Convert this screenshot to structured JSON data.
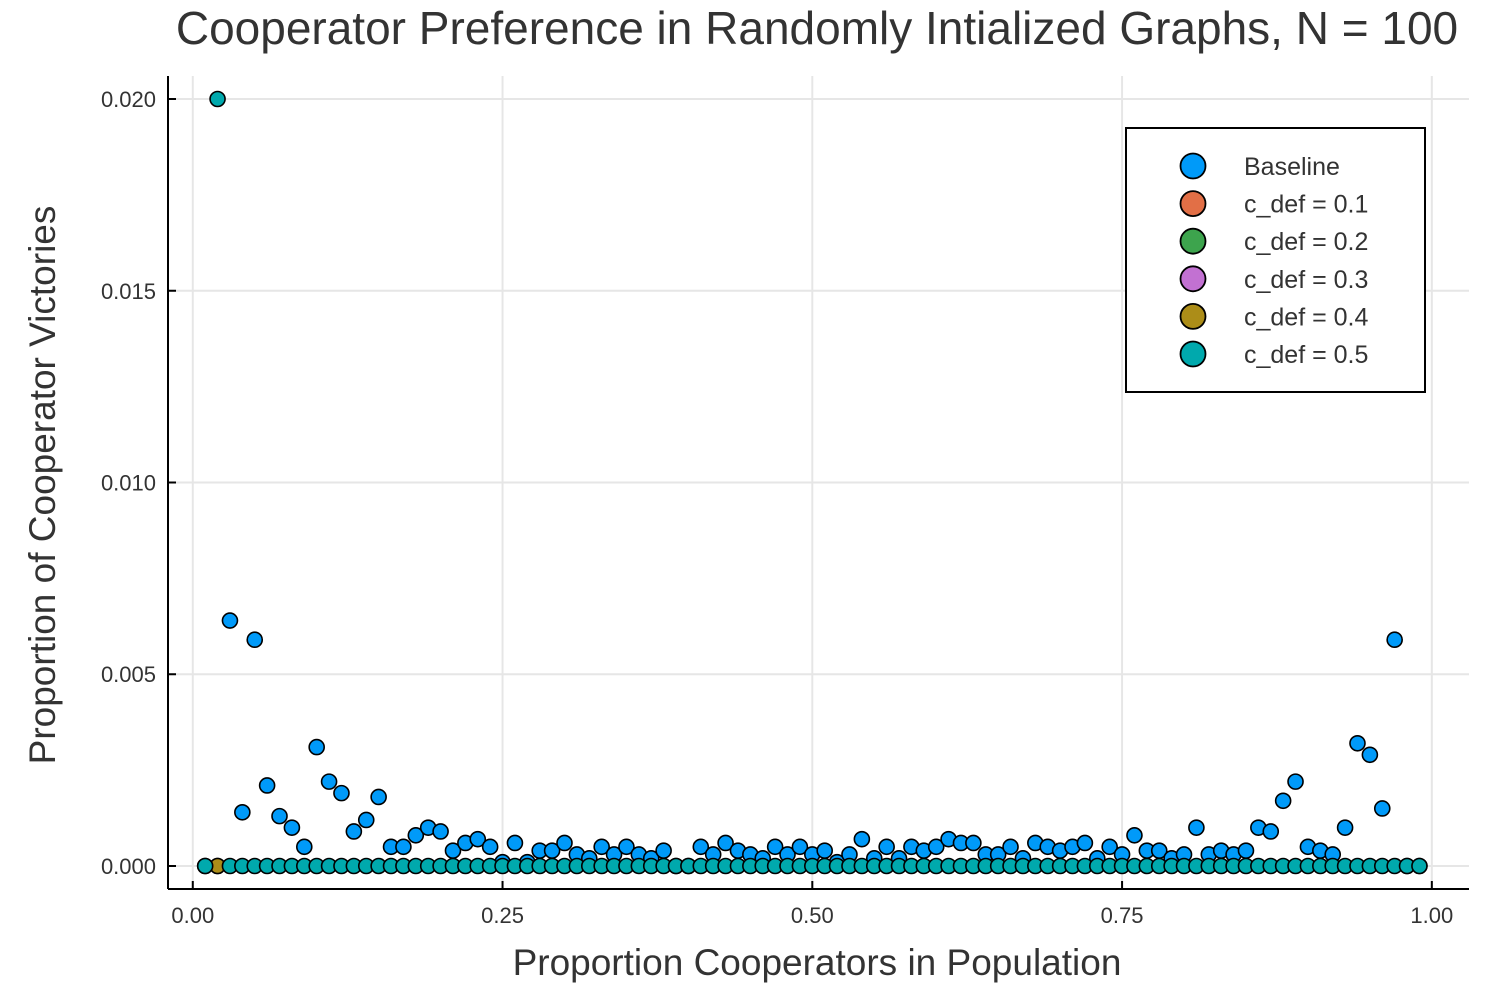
{
  "chart_data": {
    "type": "scatter",
    "title": "Cooperator Preference in Randomly Intialized Graphs, N = 100",
    "xlabel": "Proportion Cooperators in Population",
    "ylabel": "Proportion of Cooperator Victories",
    "xlim": [
      -0.02,
      1.03
    ],
    "ylim": [
      -0.0006,
      0.0206
    ],
    "xticks": [
      0.0,
      0.25,
      0.5,
      0.75,
      1.0
    ],
    "xtick_labels": [
      "0.00",
      "0.25",
      "0.50",
      "0.75",
      "1.00"
    ],
    "yticks": [
      0.0,
      0.005,
      0.01,
      0.015,
      0.02
    ],
    "ytick_labels": [
      "0.000",
      "0.005",
      "0.010",
      "0.015",
      "0.020"
    ],
    "grid": true,
    "legend_position": "top-right",
    "series": [
      {
        "name": "Baseline",
        "color": "#009af9",
        "points": [
          [
            0.01,
            0.0
          ],
          [
            0.02,
            0.0
          ],
          [
            0.03,
            0.0064
          ],
          [
            0.04,
            0.0014
          ],
          [
            0.05,
            0.0059
          ],
          [
            0.06,
            0.0021
          ],
          [
            0.07,
            0.0013
          ],
          [
            0.08,
            0.001
          ],
          [
            0.09,
            0.0005
          ],
          [
            0.1,
            0.0031
          ],
          [
            0.11,
            0.0022
          ],
          [
            0.12,
            0.0019
          ],
          [
            0.13,
            0.0009
          ],
          [
            0.14,
            0.0012
          ],
          [
            0.15,
            0.0018
          ],
          [
            0.16,
            0.0005
          ],
          [
            0.17,
            0.0005
          ],
          [
            0.18,
            0.0008
          ],
          [
            0.19,
            0.001
          ],
          [
            0.2,
            0.0009
          ],
          [
            0.21,
            0.0004
          ],
          [
            0.22,
            0.0006
          ],
          [
            0.23,
            0.0007
          ],
          [
            0.24,
            0.0005
          ],
          [
            0.25,
            0.0001
          ],
          [
            0.26,
            0.0006
          ],
          [
            0.27,
            0.0001
          ],
          [
            0.28,
            0.0004
          ],
          [
            0.29,
            0.0004
          ],
          [
            0.3,
            0.0006
          ],
          [
            0.31,
            0.0003
          ],
          [
            0.32,
            0.0002
          ],
          [
            0.33,
            0.0005
          ],
          [
            0.34,
            0.0003
          ],
          [
            0.35,
            0.0005
          ],
          [
            0.36,
            0.0003
          ],
          [
            0.37,
            0.0002
          ],
          [
            0.38,
            0.0004
          ],
          [
            0.39,
            0.0
          ],
          [
            0.4,
            0.0
          ],
          [
            0.41,
            0.0005
          ],
          [
            0.42,
            0.0003
          ],
          [
            0.43,
            0.0006
          ],
          [
            0.44,
            0.0004
          ],
          [
            0.45,
            0.0003
          ],
          [
            0.46,
            0.0002
          ],
          [
            0.47,
            0.0005
          ],
          [
            0.48,
            0.0003
          ],
          [
            0.49,
            0.0005
          ],
          [
            0.5,
            0.0003
          ],
          [
            0.51,
            0.0004
          ],
          [
            0.52,
            0.0001
          ],
          [
            0.53,
            0.0003
          ],
          [
            0.54,
            0.0007
          ],
          [
            0.55,
            0.0002
          ],
          [
            0.56,
            0.0005
          ],
          [
            0.57,
            0.0002
          ],
          [
            0.58,
            0.0005
          ],
          [
            0.59,
            0.0004
          ],
          [
            0.6,
            0.0005
          ],
          [
            0.61,
            0.0007
          ],
          [
            0.62,
            0.0006
          ],
          [
            0.63,
            0.0006
          ],
          [
            0.64,
            0.0003
          ],
          [
            0.65,
            0.0003
          ],
          [
            0.66,
            0.0005
          ],
          [
            0.67,
            0.0002
          ],
          [
            0.68,
            0.0006
          ],
          [
            0.69,
            0.0005
          ],
          [
            0.7,
            0.0004
          ],
          [
            0.71,
            0.0005
          ],
          [
            0.72,
            0.0006
          ],
          [
            0.73,
            0.0002
          ],
          [
            0.74,
            0.0005
          ],
          [
            0.75,
            0.0003
          ],
          [
            0.76,
            0.0008
          ],
          [
            0.77,
            0.0004
          ],
          [
            0.78,
            0.0004
          ],
          [
            0.79,
            0.0002
          ],
          [
            0.8,
            0.0003
          ],
          [
            0.81,
            0.001
          ],
          [
            0.82,
            0.0003
          ],
          [
            0.83,
            0.0004
          ],
          [
            0.84,
            0.0003
          ],
          [
            0.85,
            0.0004
          ],
          [
            0.86,
            0.001
          ],
          [
            0.87,
            0.0009
          ],
          [
            0.88,
            0.0017
          ],
          [
            0.89,
            0.0022
          ],
          [
            0.9,
            0.0005
          ],
          [
            0.91,
            0.0004
          ],
          [
            0.92,
            0.0003
          ],
          [
            0.93,
            0.001
          ],
          [
            0.94,
            0.0032
          ],
          [
            0.95,
            0.0029
          ],
          [
            0.96,
            0.0015
          ],
          [
            0.97,
            0.0059
          ],
          [
            0.98,
            0.0
          ],
          [
            0.99,
            0.0
          ]
        ]
      },
      {
        "name": "c_def = 0.1",
        "color": "#e26f46",
        "points": []
      },
      {
        "name": "c_def = 0.2",
        "color": "#3da44d",
        "points": []
      },
      {
        "name": "c_def = 0.3",
        "color": "#c271d2",
        "points": []
      },
      {
        "name": "c_def = 0.4",
        "color": "#ac8d18",
        "points": [
          [
            0.02,
            0.0
          ]
        ]
      },
      {
        "name": "c_def = 0.5",
        "color": "#00a9ad",
        "points": [
          [
            0.01,
            0.0
          ],
          [
            0.02,
            0.02
          ],
          [
            0.03,
            0.0
          ],
          [
            0.04,
            0.0
          ],
          [
            0.05,
            0.0
          ],
          [
            0.06,
            0.0
          ],
          [
            0.07,
            0.0
          ],
          [
            0.08,
            0.0
          ],
          [
            0.09,
            0.0
          ],
          [
            0.1,
            0.0
          ],
          [
            0.11,
            0.0
          ],
          [
            0.12,
            0.0
          ],
          [
            0.13,
            0.0
          ],
          [
            0.14,
            0.0
          ],
          [
            0.15,
            0.0
          ],
          [
            0.16,
            0.0
          ],
          [
            0.17,
            0.0
          ],
          [
            0.18,
            0.0
          ],
          [
            0.19,
            0.0
          ],
          [
            0.2,
            0.0
          ],
          [
            0.21,
            0.0
          ],
          [
            0.22,
            0.0
          ],
          [
            0.23,
            0.0
          ],
          [
            0.24,
            0.0
          ],
          [
            0.25,
            0.0
          ],
          [
            0.26,
            0.0
          ],
          [
            0.27,
            0.0
          ],
          [
            0.28,
            0.0
          ],
          [
            0.29,
            0.0
          ],
          [
            0.3,
            0.0
          ],
          [
            0.31,
            0.0
          ],
          [
            0.32,
            0.0
          ],
          [
            0.33,
            0.0
          ],
          [
            0.34,
            0.0
          ],
          [
            0.35,
            0.0
          ],
          [
            0.36,
            0.0
          ],
          [
            0.37,
            0.0
          ],
          [
            0.38,
            0.0
          ],
          [
            0.39,
            0.0
          ],
          [
            0.4,
            0.0
          ],
          [
            0.41,
            0.0
          ],
          [
            0.42,
            0.0
          ],
          [
            0.43,
            0.0
          ],
          [
            0.44,
            0.0
          ],
          [
            0.45,
            0.0
          ],
          [
            0.46,
            0.0
          ],
          [
            0.47,
            0.0
          ],
          [
            0.48,
            0.0
          ],
          [
            0.49,
            0.0
          ],
          [
            0.5,
            0.0
          ],
          [
            0.51,
            0.0
          ],
          [
            0.52,
            0.0
          ],
          [
            0.53,
            0.0
          ],
          [
            0.54,
            0.0
          ],
          [
            0.55,
            0.0
          ],
          [
            0.56,
            0.0
          ],
          [
            0.57,
            0.0
          ],
          [
            0.58,
            0.0
          ],
          [
            0.59,
            0.0
          ],
          [
            0.6,
            0.0
          ],
          [
            0.61,
            0.0
          ],
          [
            0.62,
            0.0
          ],
          [
            0.63,
            0.0
          ],
          [
            0.64,
            0.0
          ],
          [
            0.65,
            0.0
          ],
          [
            0.66,
            0.0
          ],
          [
            0.67,
            0.0
          ],
          [
            0.68,
            0.0
          ],
          [
            0.69,
            0.0
          ],
          [
            0.7,
            0.0
          ],
          [
            0.71,
            0.0
          ],
          [
            0.72,
            0.0
          ],
          [
            0.73,
            0.0
          ],
          [
            0.74,
            0.0
          ],
          [
            0.75,
            0.0
          ],
          [
            0.76,
            0.0
          ],
          [
            0.77,
            0.0
          ],
          [
            0.78,
            0.0
          ],
          [
            0.79,
            0.0
          ],
          [
            0.8,
            0.0
          ],
          [
            0.81,
            0.0
          ],
          [
            0.82,
            0.0
          ],
          [
            0.83,
            0.0
          ],
          [
            0.84,
            0.0
          ],
          [
            0.85,
            0.0
          ],
          [
            0.86,
            0.0
          ],
          [
            0.87,
            0.0
          ],
          [
            0.88,
            0.0
          ],
          [
            0.89,
            0.0
          ],
          [
            0.9,
            0.0
          ],
          [
            0.91,
            0.0
          ],
          [
            0.92,
            0.0
          ],
          [
            0.93,
            0.0
          ],
          [
            0.94,
            0.0
          ],
          [
            0.95,
            0.0
          ],
          [
            0.96,
            0.0
          ],
          [
            0.97,
            0.0
          ],
          [
            0.98,
            0.0
          ],
          [
            0.99,
            0.0
          ]
        ]
      }
    ]
  }
}
